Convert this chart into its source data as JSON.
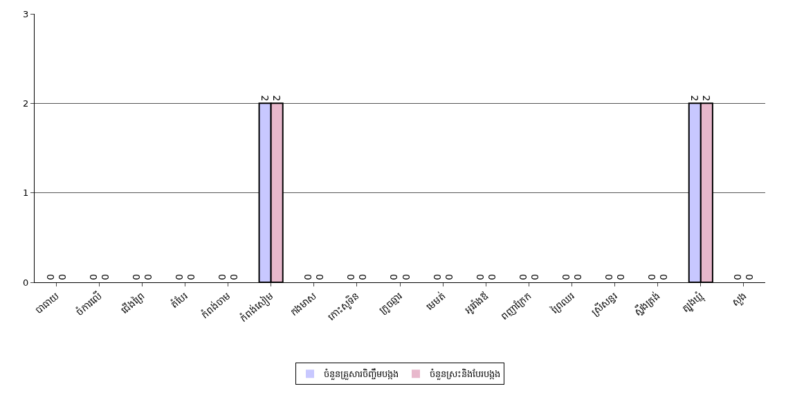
{
  "chart_data": {
    "type": "bar",
    "categories": [
      "បាធាយ",
      "ចំការលើ",
      "ជើងព្រៃ",
      "តំបែរ",
      "កំពង់ចាម",
      "កំពង់សៀម",
      "កងមាស",
      "កោះសូទិន",
      "ក្រូចឆ្មារ",
      "មេមត់",
      "អូររាំងឪ",
      "ពញាក្រែក",
      "ព្រៃឈរ",
      "ស្រីសន្ធរ",
      "ស្ទឹងត្រង់",
      "ត្បូងឃ្មុំ",
      "សួង"
    ],
    "series": [
      {
        "name": "ចំនួនគ្រួសារចិញ្ចឹមបង្កង",
        "color": "#c8c8ff",
        "values": [
          0,
          0,
          0,
          0,
          0,
          2,
          0,
          0,
          0,
          0,
          0,
          0,
          0,
          0,
          0,
          2,
          0
        ]
      },
      {
        "name": "ចំនួនស្រះនិងបែរបង្កង",
        "color": "#e8b8cc",
        "values": [
          0,
          0,
          0,
          0,
          0,
          2,
          0,
          0,
          0,
          0,
          0,
          0,
          0,
          0,
          0,
          2,
          0
        ]
      }
    ],
    "ylim": [
      0,
      3
    ],
    "yticks": [
      0,
      1,
      2,
      3
    ],
    "grid": "y",
    "legend": "bottom",
    "data_labels": true
  }
}
